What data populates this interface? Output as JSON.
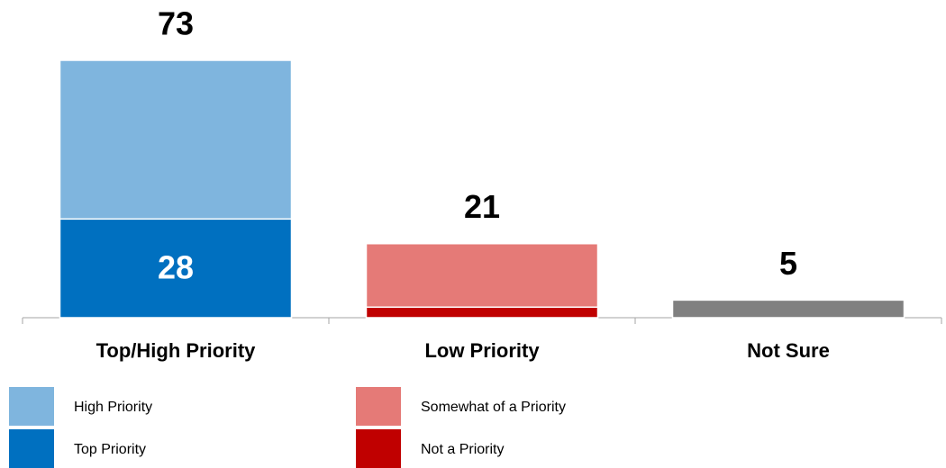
{
  "chart_data": {
    "type": "stacked_bar",
    "categories": [
      "Top/High Priority",
      "Low Priority",
      "Not Sure"
    ],
    "series": [
      {
        "name": "Top Priority",
        "color": "#0070c0",
        "values": [
          28,
          null,
          null
        ],
        "show_labels": true
      },
      {
        "name": "High Priority",
        "color": "#7fb5de",
        "values": [
          45,
          null,
          null
        ]
      },
      {
        "name": "Not a Priority",
        "color": "#c00000",
        "values": [
          null,
          3,
          null
        ]
      },
      {
        "name": "Somewhat of a Priority",
        "color": "#e57a77",
        "values": [
          null,
          18,
          null
        ]
      },
      {
        "color": "#808080",
        "values": [
          null,
          null,
          5
        ]
      }
    ],
    "totals": [
      73,
      21,
      5
    ]
  }
}
